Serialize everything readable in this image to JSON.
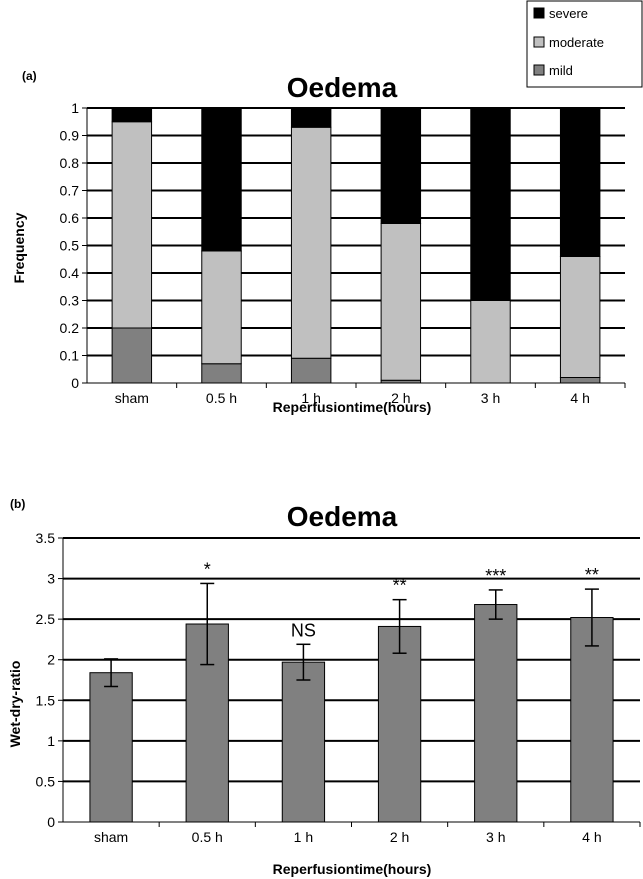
{
  "chart_data": [
    {
      "panel_label": "(a)",
      "type": "bar",
      "stacked": true,
      "title": "Oedema",
      "xlabel": "Reperfusiontime(hours)",
      "ylabel": "Frequency",
      "ylim": [
        0,
        1
      ],
      "yticks": [
        "0",
        "0.1",
        "0.2",
        "0.3",
        "0.4",
        "0.5",
        "0.6",
        "0.7",
        "0.8",
        "0.9",
        "1"
      ],
      "grid": true,
      "categories": [
        "sham",
        "0.5 h",
        "1 h",
        "2 h",
        "3 h",
        "4 h"
      ],
      "legend_position": "top-right",
      "series": [
        {
          "name": "mild",
          "color": "#808080",
          "values": [
            0.2,
            0.07,
            0.09,
            0.01,
            0.0,
            0.02
          ]
        },
        {
          "name": "moderate",
          "color": "#c0c0c0",
          "values": [
            0.75,
            0.41,
            0.84,
            0.57,
            0.3,
            0.44
          ]
        },
        {
          "name": "severe",
          "color": "#000000",
          "values": [
            0.05,
            0.52,
            0.07,
            0.42,
            0.7,
            0.54
          ]
        }
      ]
    },
    {
      "panel_label": "(b)",
      "type": "bar",
      "title": "Oedema",
      "xlabel": "Reperfusiontime(hours)",
      "ylabel": "Wet-dry-ratio",
      "ylim": [
        0,
        3.5
      ],
      "yticks": [
        "0",
        "0.5",
        "1",
        "1.5",
        "2",
        "2.5",
        "3",
        "3.5"
      ],
      "grid": true,
      "categories": [
        "sham",
        "0.5 h",
        "1 h",
        "2 h",
        "3 h",
        "4 h"
      ],
      "bar_color": "#808080",
      "values": [
        1.84,
        2.44,
        1.97,
        2.41,
        2.68,
        2.52
      ],
      "error": [
        0.17,
        0.5,
        0.22,
        0.33,
        0.18,
        0.35
      ],
      "annotations": [
        "",
        "*",
        "NS",
        "**",
        "***",
        "**"
      ]
    }
  ]
}
